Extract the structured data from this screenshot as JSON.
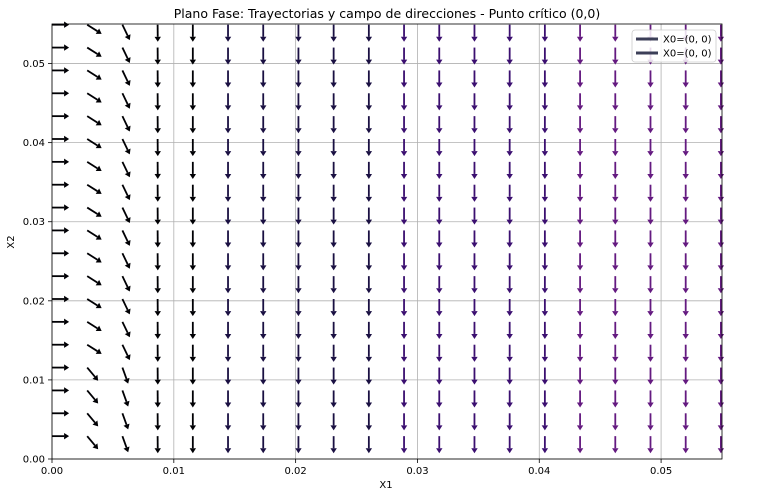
{
  "chart_data": {
    "type": "quiver",
    "title": "Plano Fase: Trayectorias y campo de direcciones - Punto crítico (0,0)",
    "xlabel": "X1",
    "ylabel": "X2",
    "xlim": [
      0,
      0.055
    ],
    "ylim": [
      0,
      0.055
    ],
    "xticks": [
      0.0,
      0.01,
      0.02,
      0.03,
      0.04,
      0.05
    ],
    "yticks": [
      0.0,
      0.01,
      0.02,
      0.03,
      0.04,
      0.05
    ],
    "xtick_labels": [
      "0.00",
      "0.01",
      "0.02",
      "0.03",
      "0.04",
      "0.05"
    ],
    "ytick_labels": [
      "0.00",
      "0.01",
      "0.02",
      "0.03",
      "0.04",
      "0.05"
    ],
    "grid": true,
    "field": {
      "x_start": 0.0,
      "x_step": 0.00289,
      "x_count": 20,
      "y_start": 0.00289,
      "y_step": 0.00289,
      "y_count": 19,
      "description_of_vectors": "direction (dx1, dx2) = (x1 small → rightward; otherwise downward)",
      "colormap": "magma-dark",
      "colors": [
        "#000004",
        "#1a1042",
        "#3b0f70",
        "#641a80"
      ]
    },
    "legend": {
      "placement": "top-right",
      "entries": [
        {
          "label": "X0=(0, 0)",
          "color": "#3c3f58"
        },
        {
          "label": "X0=(0, 0)",
          "color": "#3c3f58"
        }
      ]
    }
  }
}
